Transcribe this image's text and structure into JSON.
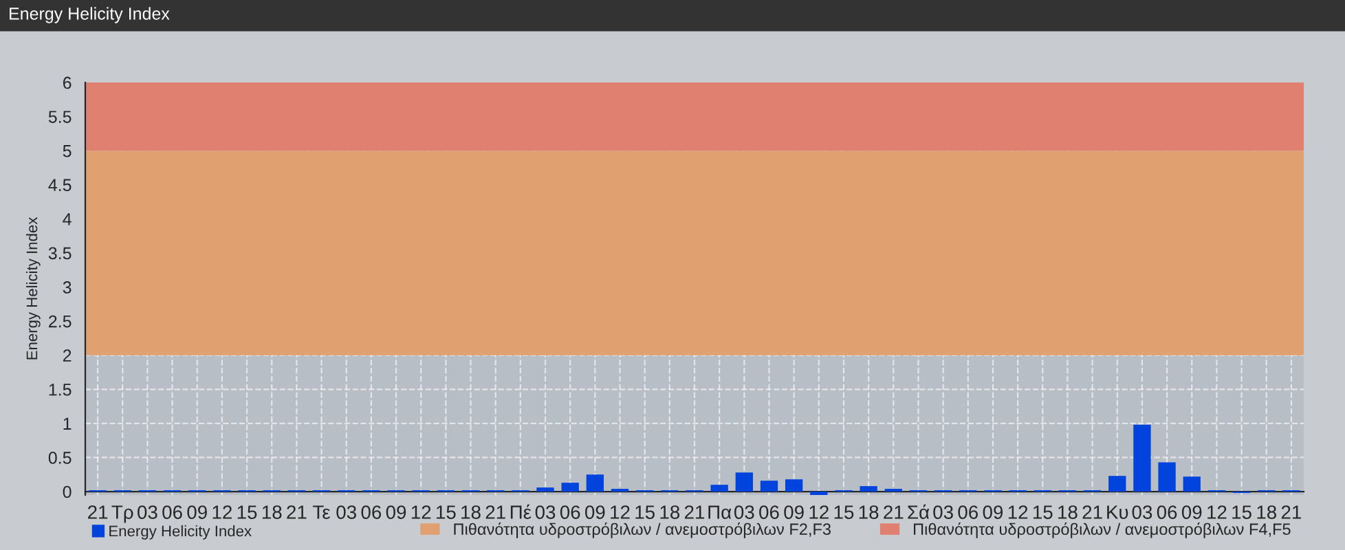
{
  "chart_data": {
    "type": "bar",
    "title": "Energy Helicity Index",
    "ylabel": "Energy Helicity Index",
    "categories": [
      "21",
      "Τρ",
      "03",
      "06",
      "09",
      "12",
      "15",
      "18",
      "21",
      "Τε",
      "03",
      "06",
      "09",
      "12",
      "15",
      "18",
      "21",
      "Πέ",
      "03",
      "06",
      "09",
      "12",
      "15",
      "18",
      "21",
      "Πα",
      "03",
      "06",
      "09",
      "12",
      "15",
      "18",
      "21",
      "Σά",
      "03",
      "06",
      "09",
      "12",
      "15",
      "18",
      "21",
      "Κυ",
      "03",
      "06",
      "09",
      "12",
      "15",
      "18",
      "21"
    ],
    "series": [
      {
        "name": "Energy Helicity Index",
        "color": "#0044dd",
        "values": [
          0.02,
          0.02,
          0.02,
          0.02,
          0.02,
          0.02,
          0.02,
          0.02,
          0.02,
          0.02,
          0.02,
          0.02,
          0.02,
          0.02,
          0.02,
          0.02,
          0.02,
          0.02,
          0.06,
          0.13,
          0.25,
          0.04,
          0.02,
          0.02,
          0.02,
          0.1,
          0.28,
          0.16,
          0.18,
          -0.05,
          0.02,
          0.08,
          0.04,
          0.02,
          0.02,
          0.02,
          0.02,
          0.02,
          0.02,
          0.02,
          0.02,
          0.23,
          0.98,
          0.43,
          0.22,
          0.02,
          -0.02,
          0.02,
          0.02
        ]
      }
    ],
    "ylim": [
      -0.05,
      6
    ],
    "yticks": [
      0,
      0.5,
      1,
      1.5,
      2,
      2.5,
      3,
      3.5,
      4,
      4.5,
      5,
      5.5,
      6
    ],
    "bands": [
      {
        "axis": "y",
        "from": 2,
        "to": 5,
        "label": "Πιθανότητα υδροστρόβιλων / ανεμοστρόβιλων F2,F3",
        "color": "#e0a070"
      },
      {
        "axis": "y",
        "from": 5,
        "to": 6,
        "label": "Πιθανότητα υδροστρόβιλων / ανεμοστρόβιλων F4,F5",
        "color": "#e08070"
      }
    ],
    "grid": true,
    "legend": "bottom left"
  }
}
